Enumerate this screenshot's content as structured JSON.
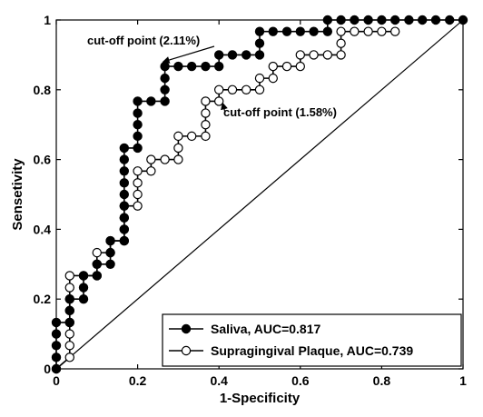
{
  "chart_data": {
    "type": "line",
    "title": "",
    "xlabel": "1-Specificity",
    "ylabel": "Sensetivity",
    "xlim": [
      0,
      1
    ],
    "ylim": [
      0,
      1
    ],
    "xticks": [
      "0",
      "0.2",
      "0.4",
      "0.6",
      "0.8",
      "1"
    ],
    "yticks": [
      "0",
      "0.2",
      "0.4",
      "0.6",
      "0.8",
      "1"
    ],
    "grid": false,
    "legend_position": "bottom-right",
    "series": [
      {
        "name": "Saliva, AUC=0.817",
        "marker": "filled-circle",
        "color": "#000000",
        "points": [
          [
            0,
            0
          ],
          [
            0,
            0.033
          ],
          [
            0,
            0.067
          ],
          [
            0,
            0.1
          ],
          [
            0,
            0.133
          ],
          [
            0.033,
            0.133
          ],
          [
            0.033,
            0.167
          ],
          [
            0.033,
            0.2
          ],
          [
            0.067,
            0.2
          ],
          [
            0.067,
            0.233
          ],
          [
            0.067,
            0.267
          ],
          [
            0.1,
            0.267
          ],
          [
            0.1,
            0.3
          ],
          [
            0.133,
            0.3
          ],
          [
            0.133,
            0.333
          ],
          [
            0.133,
            0.367
          ],
          [
            0.167,
            0.367
          ],
          [
            0.167,
            0.4
          ],
          [
            0.167,
            0.433
          ],
          [
            0.167,
            0.467
          ],
          [
            0.167,
            0.5
          ],
          [
            0.167,
            0.533
          ],
          [
            0.167,
            0.567
          ],
          [
            0.167,
            0.6
          ],
          [
            0.167,
            0.633
          ],
          [
            0.2,
            0.633
          ],
          [
            0.2,
            0.667
          ],
          [
            0.2,
            0.7
          ],
          [
            0.2,
            0.733
          ],
          [
            0.2,
            0.767
          ],
          [
            0.233,
            0.767
          ],
          [
            0.267,
            0.767
          ],
          [
            0.267,
            0.8
          ],
          [
            0.267,
            0.833
          ],
          [
            0.267,
            0.867
          ],
          [
            0.3,
            0.867
          ],
          [
            0.333,
            0.867
          ],
          [
            0.367,
            0.867
          ],
          [
            0.4,
            0.867
          ],
          [
            0.4,
            0.9
          ],
          [
            0.433,
            0.9
          ],
          [
            0.467,
            0.9
          ],
          [
            0.5,
            0.9
          ],
          [
            0.5,
            0.933
          ],
          [
            0.5,
            0.967
          ],
          [
            0.533,
            0.967
          ],
          [
            0.567,
            0.967
          ],
          [
            0.6,
            0.967
          ],
          [
            0.633,
            0.967
          ],
          [
            0.667,
            0.967
          ],
          [
            0.667,
            1
          ],
          [
            0.7,
            1
          ],
          [
            0.733,
            1
          ],
          [
            0.767,
            1
          ],
          [
            0.8,
            1
          ],
          [
            0.833,
            1
          ],
          [
            0.867,
            1
          ],
          [
            0.9,
            1
          ],
          [
            0.933,
            1
          ],
          [
            0.967,
            1
          ],
          [
            1,
            1
          ]
        ]
      },
      {
        "name": "Supragingival Plaque, AUC=0.739",
        "marker": "open-circle",
        "color": "#000000",
        "points": [
          [
            0,
            0
          ],
          [
            0.033,
            0.033
          ],
          [
            0.033,
            0.067
          ],
          [
            0.033,
            0.1
          ],
          [
            0.033,
            0.133
          ],
          [
            0.033,
            0.167
          ],
          [
            0.033,
            0.2
          ],
          [
            0.033,
            0.233
          ],
          [
            0.033,
            0.267
          ],
          [
            0.067,
            0.267
          ],
          [
            0.1,
            0.267
          ],
          [
            0.1,
            0.3
          ],
          [
            0.1,
            0.333
          ],
          [
            0.133,
            0.333
          ],
          [
            0.133,
            0.367
          ],
          [
            0.167,
            0.367
          ],
          [
            0.167,
            0.4
          ],
          [
            0.167,
            0.433
          ],
          [
            0.167,
            0.467
          ],
          [
            0.2,
            0.467
          ],
          [
            0.2,
            0.5
          ],
          [
            0.2,
            0.533
          ],
          [
            0.2,
            0.567
          ],
          [
            0.233,
            0.567
          ],
          [
            0.233,
            0.6
          ],
          [
            0.267,
            0.6
          ],
          [
            0.3,
            0.6
          ],
          [
            0.3,
            0.633
          ],
          [
            0.3,
            0.667
          ],
          [
            0.333,
            0.667
          ],
          [
            0.367,
            0.667
          ],
          [
            0.367,
            0.7
          ],
          [
            0.367,
            0.733
          ],
          [
            0.367,
            0.767
          ],
          [
            0.4,
            0.767
          ],
          [
            0.4,
            0.8
          ],
          [
            0.433,
            0.8
          ],
          [
            0.467,
            0.8
          ],
          [
            0.5,
            0.8
          ],
          [
            0.5,
            0.833
          ],
          [
            0.533,
            0.833
          ],
          [
            0.533,
            0.867
          ],
          [
            0.567,
            0.867
          ],
          [
            0.6,
            0.867
          ],
          [
            0.6,
            0.9
          ],
          [
            0.633,
            0.9
          ],
          [
            0.667,
            0.9
          ],
          [
            0.7,
            0.9
          ],
          [
            0.7,
            0.933
          ],
          [
            0.7,
            0.967
          ],
          [
            0.733,
            0.967
          ],
          [
            0.767,
            0.967
          ],
          [
            0.8,
            0.967
          ],
          [
            0.833,
            0.967
          ]
        ]
      }
    ],
    "reference_line": [
      [
        0,
        0
      ],
      [
        1,
        1
      ]
    ],
    "annotations": [
      {
        "text": "cut-off point (2.11%)",
        "x": 0.267,
        "y": 0.867
      },
      {
        "text": "cut-off point (1.58%)",
        "x": 0.4,
        "y": 0.767
      }
    ]
  }
}
